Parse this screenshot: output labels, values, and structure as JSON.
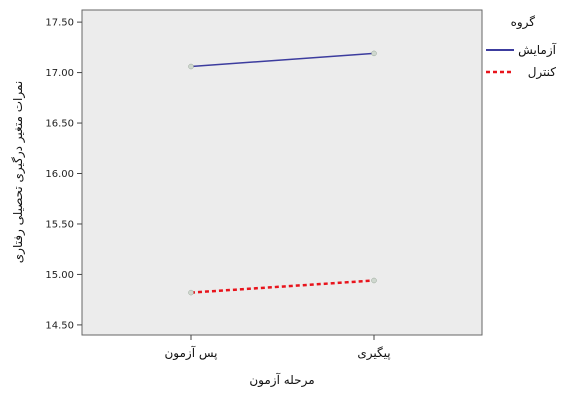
{
  "chart_data": {
    "type": "line",
    "categories": [
      "پس آزمون",
      "پیگیری"
    ],
    "series": [
      {
        "name": "آزمایش",
        "values": [
          17.06,
          17.19
        ],
        "color": "#3c3c9e",
        "dash": "solid"
      },
      {
        "name": "کنترل",
        "values": [
          14.82,
          14.94
        ],
        "color": "#e8141c",
        "dash": "dashed"
      }
    ],
    "xlabel": "مرحله آزمون",
    "ylabel": "نمرات متغیر درگیری تحصیلی رفتاری",
    "ylim": [
      14.4,
      17.62
    ],
    "yticks": [
      "17.50",
      "17.00",
      "16.50",
      "16.00",
      "15.50",
      "15.00",
      "14.50"
    ],
    "legend_title": "گروه",
    "legend_position": "right",
    "plot_background": "#ececec",
    "grid": false
  }
}
